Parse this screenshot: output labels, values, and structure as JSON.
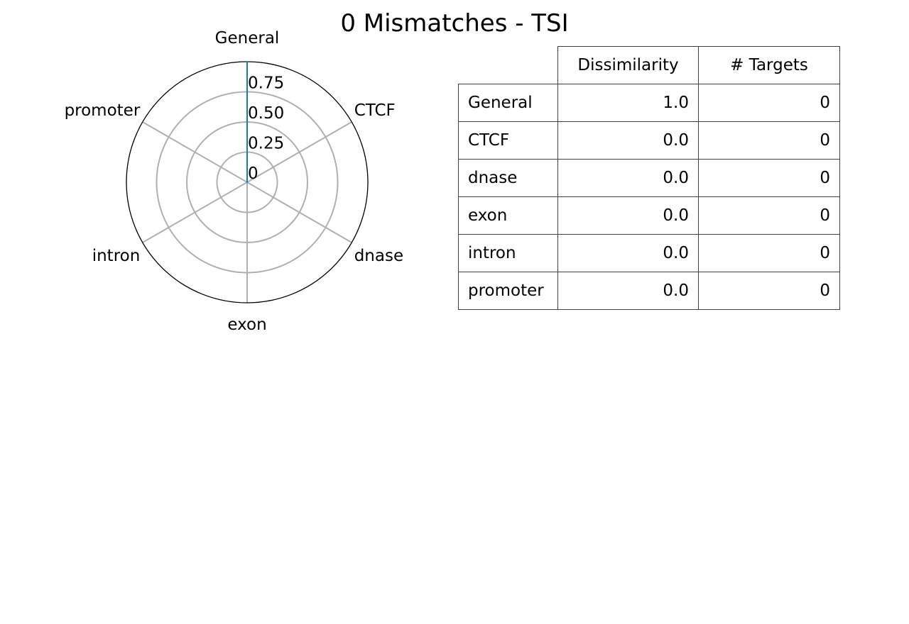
{
  "title": "0 Mismatches - TSI",
  "colors": {
    "series": "#1f77b4",
    "grid": "#b0b0b0",
    "frame": "#000000"
  },
  "chart_data": [
    {
      "type": "radar",
      "categories": [
        "General",
        "CTCF",
        "dnase",
        "exon",
        "intron",
        "promoter"
      ],
      "series": [
        {
          "values": [
            1.0,
            0.0,
            0.0,
            0.0,
            0.0,
            0.0
          ]
        }
      ],
      "radial_ticks": [
        "0",
        "0.25",
        "0.50",
        "0.75"
      ],
      "radial_tick_values": [
        0,
        0.25,
        0.5,
        0.75
      ],
      "ylim": [
        0,
        1.0
      ],
      "grid": true
    },
    {
      "type": "table",
      "columns": [
        "Dissimilarity",
        "# Targets"
      ],
      "rows": [
        {
          "label": "General",
          "dissimilarity": "1.0",
          "targets": "0"
        },
        {
          "label": "CTCF",
          "dissimilarity": "0.0",
          "targets": "0"
        },
        {
          "label": "dnase",
          "dissimilarity": "0.0",
          "targets": "0"
        },
        {
          "label": "exon",
          "dissimilarity": "0.0",
          "targets": "0"
        },
        {
          "label": "intron",
          "dissimilarity": "0.0",
          "targets": "0"
        },
        {
          "label": "promoter",
          "dissimilarity": "0.0",
          "targets": "0"
        }
      ]
    }
  ]
}
